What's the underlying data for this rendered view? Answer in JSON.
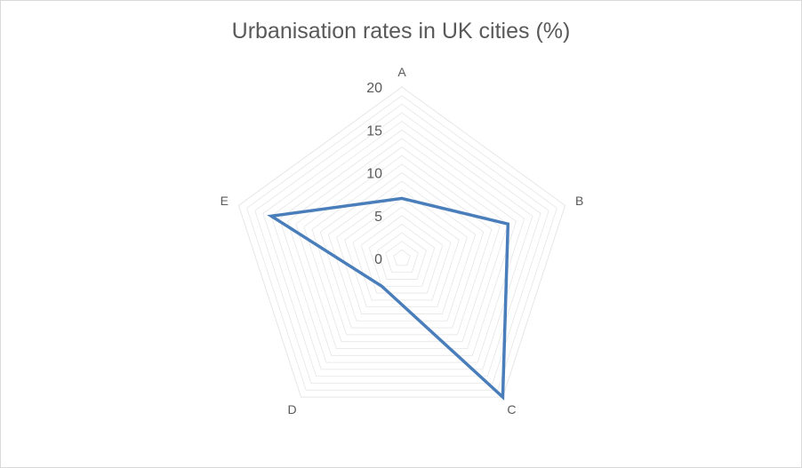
{
  "chart_data": {
    "type": "radar",
    "title": "Urbanisation rates in UK cities (%)",
    "categories": [
      "A",
      "B",
      "C",
      "D",
      "E"
    ],
    "series": [
      {
        "values": [
          7,
          13,
          20,
          4,
          16
        ]
      }
    ],
    "rlim": [
      0,
      20
    ],
    "ticks": [
      "0",
      "5",
      "10",
      "15",
      "20"
    ],
    "grid": true,
    "legend": "none",
    "colors": {
      "series": "#4a7ebb",
      "grid": "#e6e6e6"
    }
  }
}
